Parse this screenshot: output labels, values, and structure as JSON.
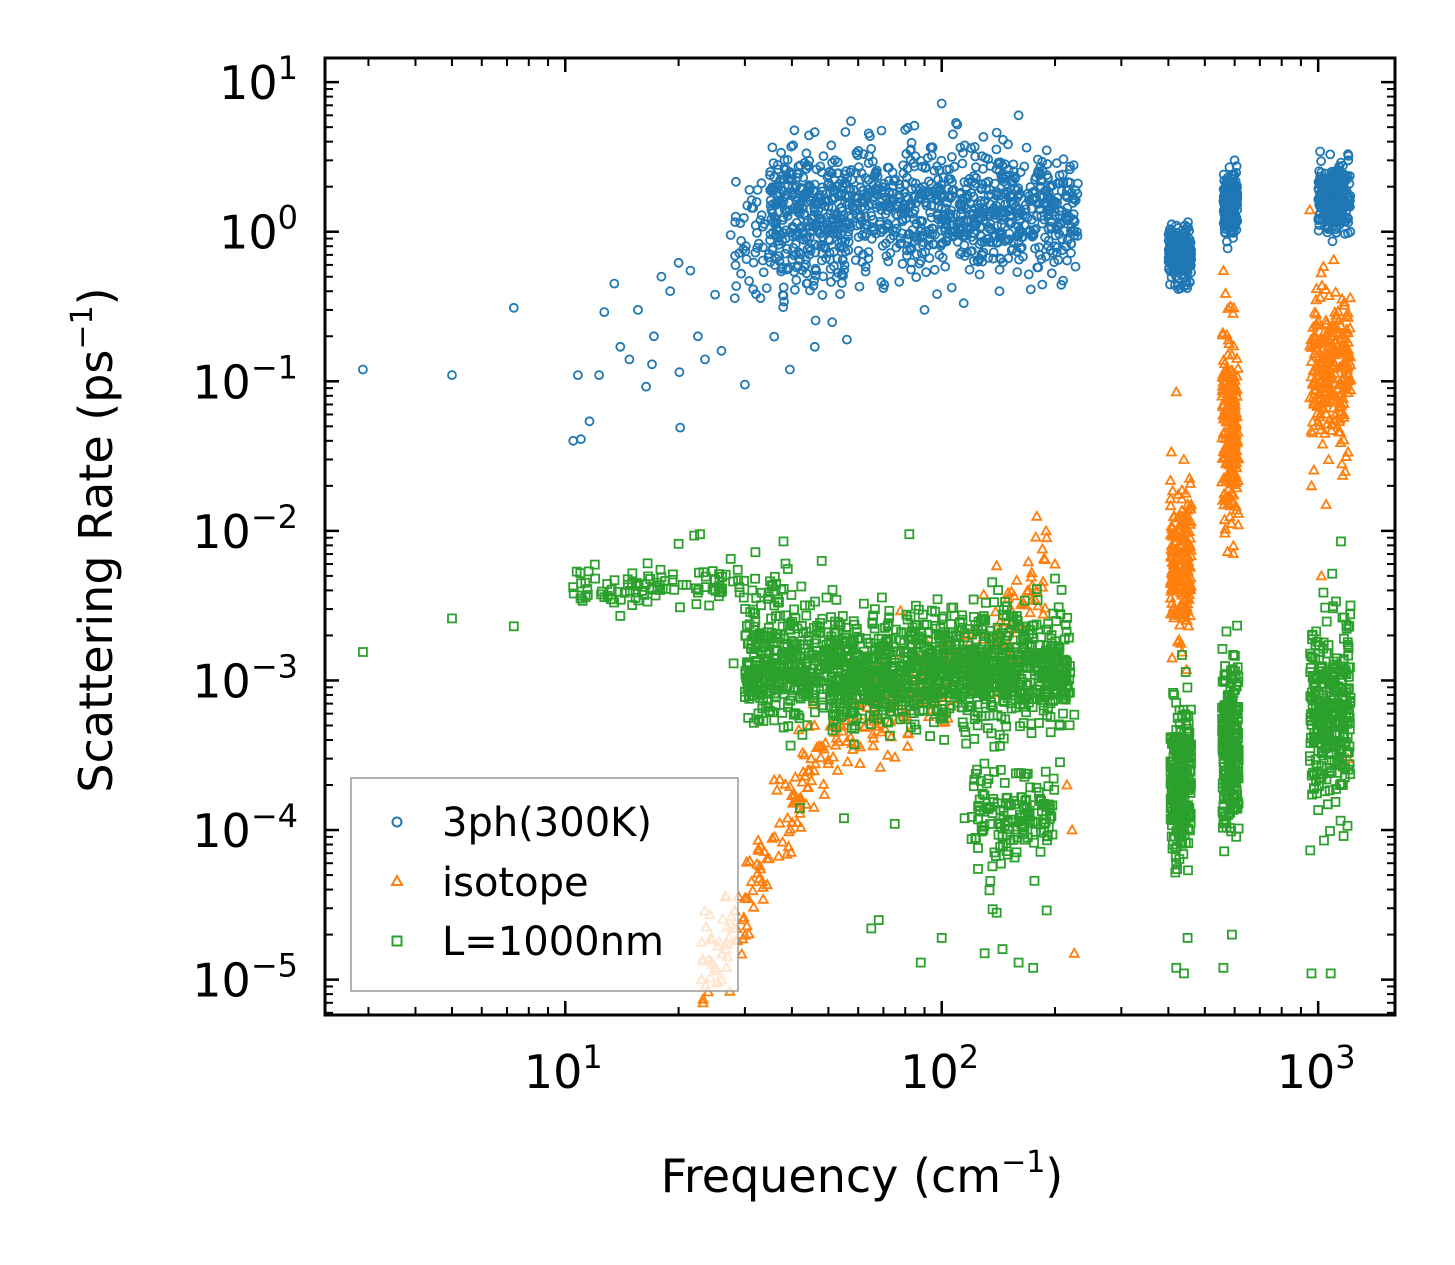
{
  "chart_data": {
    "type": "scatter",
    "xscale": "log",
    "yscale": "log",
    "xlim": [
      2.3,
      1600
    ],
    "ylim": [
      5.8e-06,
      14.5
    ],
    "xlabel": "Frequency (cm",
    "xlabel_sup": "−1",
    "xlabel_end": ")",
    "ylabel": "Scattering Rate (ps",
    "ylabel_sup": "−1",
    "ylabel_end": ")",
    "xticks": [
      {
        "value": 10,
        "base": "10",
        "exp": "1"
      },
      {
        "value": 100,
        "base": "10",
        "exp": "2"
      },
      {
        "value": 1000,
        "base": "10",
        "exp": "3"
      }
    ],
    "yticks": [
      {
        "value": 10,
        "base": "10",
        "exp": "1"
      },
      {
        "value": 1,
        "base": "10",
        "exp": "0"
      },
      {
        "value": 0.1,
        "base": "10",
        "exp": "−1"
      },
      {
        "value": 0.01,
        "base": "10",
        "exp": "−2"
      },
      {
        "value": 0.001,
        "base": "10",
        "exp": "−3"
      },
      {
        "value": 0.0001,
        "base": "10",
        "exp": "−4"
      },
      {
        "value": 1e-05,
        "base": "10",
        "exp": "−5"
      }
    ],
    "legend_position": "lower-left",
    "series": [
      {
        "name": "3ph(300K)",
        "marker": "circle",
        "color": "#1f77b4",
        "points": [
          [
            2.9,
            0.12
          ],
          [
            5,
            0.11
          ],
          [
            7.3,
            0.31
          ],
          [
            10.5,
            0.04
          ],
          [
            11,
            0.041
          ],
          [
            11.6,
            0.054
          ],
          [
            10.8,
            0.11
          ],
          [
            12.3,
            0.11
          ],
          [
            12.7,
            0.29
          ],
          [
            13.5,
            0.45
          ],
          [
            14,
            0.17
          ],
          [
            14.8,
            0.14
          ],
          [
            15.6,
            0.3
          ],
          [
            16.4,
            0.092
          ],
          [
            17,
            0.13
          ],
          [
            17.2,
            0.2
          ],
          [
            18,
            0.5
          ],
          [
            19,
            0.4
          ],
          [
            20,
            0.62
          ],
          [
            20.1,
            0.115
          ],
          [
            20.2,
            0.049
          ],
          [
            21.5,
            0.55
          ],
          [
            22.5,
            0.2
          ],
          [
            23.5,
            0.14
          ],
          [
            25,
            0.38
          ],
          [
            26,
            0.16
          ],
          [
            27.5,
            0.95
          ],
          [
            29,
            0.72
          ],
          [
            30,
            0.095
          ],
          [
            33,
            0.36
          ],
          [
            35,
            1.9
          ],
          [
            36,
            0.6
          ],
          [
            39.5,
            0.12
          ],
          [
            40,
            2.2
          ],
          [
            43,
            1.7
          ],
          [
            46,
            0.17
          ],
          [
            48,
            2.5
          ],
          [
            52,
            3
          ],
          [
            56,
            0.19
          ],
          [
            62,
            3.3
          ],
          [
            70,
            0.42
          ],
          [
            80,
            4.8
          ],
          [
            90,
            0.3
          ],
          [
            100,
            7.2
          ],
          [
            103,
            2.6
          ],
          [
            110,
            5.2
          ],
          [
            125,
            0.63
          ],
          [
            140,
            4.6
          ],
          [
            160,
            6
          ],
          [
            175,
            0.95
          ],
          [
            190,
            3.5
          ],
          [
            200,
            0.8
          ],
          [
            215,
            1.7
          ],
          [
            230,
            2.1
          ],
          [
            420,
            1.1
          ],
          [
            440,
            0.43
          ],
          [
            460,
            0.65
          ],
          [
            560,
            1.6
          ],
          [
            575,
            2.3
          ],
          [
            600,
            3
          ],
          [
            1010,
            1.3
          ],
          [
            1080,
            2
          ],
          [
            1150,
            2.9
          ],
          [
            1200,
            3.3
          ]
        ],
        "clusters": [
          {
            "xmin": 35,
            "xmax": 230,
            "ycenter": 1.4,
            "spread": 0.42,
            "n": 1100
          },
          {
            "xmin": 28,
            "xmax": 55,
            "ycenter": 0.75,
            "spread": 0.45,
            "n": 120
          },
          {
            "xmin": 400,
            "xmax": 460,
            "ycenter": 0.7,
            "spread": 0.18,
            "n": 220
          },
          {
            "xmin": 560,
            "xmax": 610,
            "ycenter": 1.5,
            "spread": 0.2,
            "n": 220
          },
          {
            "xmin": 1000,
            "xmax": 1220,
            "ycenter": 1.7,
            "spread": 0.22,
            "n": 260
          }
        ]
      },
      {
        "name": "isotope",
        "marker": "triangle",
        "color": "#ff7f0e",
        "points": [
          [
            23,
            1e-05
          ],
          [
            25,
            1.2e-05
          ],
          [
            26.5,
            1.7e-05
          ],
          [
            28,
            2.2e-05
          ],
          [
            30,
            3.5e-05
          ],
          [
            33,
            5.5e-05
          ],
          [
            36,
            9e-05
          ],
          [
            40,
            0.00017
          ],
          [
            45,
            0.0003
          ],
          [
            52,
            0.00045
          ],
          [
            60,
            0.00058
          ],
          [
            75,
            0.00075
          ],
          [
            95,
            0.0009
          ],
          [
            120,
            0.0012
          ],
          [
            150,
            0.0022
          ],
          [
            170,
            0.004
          ],
          [
            190,
            0.009
          ],
          [
            200,
            0.006
          ],
          [
            215,
            0.0002
          ],
          [
            222,
            0.0001
          ],
          [
            225,
            1.5e-05
          ],
          [
            420,
            0.085
          ],
          [
            440,
            0.03
          ],
          [
            450,
            0.015
          ],
          [
            560,
            0.55
          ],
          [
            590,
            0.15
          ],
          [
            610,
            0.04
          ],
          [
            950,
            1.4
          ],
          [
            1000,
            0.25
          ],
          [
            1050,
            0.015
          ],
          [
            1100,
            0.65
          ],
          [
            1180,
            0.025
          ],
          [
            1200,
            0.0003
          ],
          [
            960,
            0.02
          ],
          [
            1020,
            0.005
          ]
        ],
        "curve": [
          [
            23,
            1e-05
          ],
          [
            30,
            3e-05
          ],
          [
            40,
            0.00016
          ],
          [
            50,
            0.00038
          ],
          [
            60,
            0.00055
          ],
          [
            80,
            0.0008
          ],
          [
            100,
            0.001
          ],
          [
            130,
            0.0015
          ],
          [
            160,
            0.0028
          ],
          [
            190,
            0.0065
          ]
        ],
        "clusters": [
          {
            "xmin": 23,
            "xmax": 190,
            "ycenter": 0.0004,
            "spread": 0.35,
            "n": 360,
            "follow_curve": true
          },
          {
            "xmin": 405,
            "xmax": 460,
            "ycenter": 0.006,
            "spread": 0.55,
            "n": 200
          },
          {
            "xmin": 555,
            "xmax": 615,
            "ycenter": 0.05,
            "spread": 0.6,
            "n": 220
          },
          {
            "xmin": 950,
            "xmax": 1220,
            "ycenter": 0.12,
            "spread": 0.5,
            "n": 260
          }
        ]
      },
      {
        "name": "L=1000nm",
        "marker": "square",
        "color": "#2ca02c",
        "points": [
          [
            2.9,
            0.00155
          ],
          [
            5,
            0.0026
          ],
          [
            7.3,
            0.0023
          ],
          [
            10.5,
            0.0042
          ],
          [
            11.3,
            0.0045
          ],
          [
            12,
            0.0048
          ],
          [
            12.7,
            0.0036
          ],
          [
            14,
            0.0027
          ],
          [
            15.5,
            0.0043
          ],
          [
            18,
            0.0049
          ],
          [
            20,
            0.0082
          ],
          [
            22,
            0.0093
          ],
          [
            22.8,
            0.0095
          ],
          [
            25,
            0.0047
          ],
          [
            27.5,
            0.0065
          ],
          [
            28,
            0.0013
          ],
          [
            29,
            0.0042
          ],
          [
            32,
            0.0072
          ],
          [
            38,
            0.0085
          ],
          [
            42,
            0.00014
          ],
          [
            48,
            0.0063
          ],
          [
            55,
            0.00012
          ],
          [
            65,
            2.2e-05
          ],
          [
            68,
            2.5e-05
          ],
          [
            75,
            0.00011
          ],
          [
            82,
            0.0095
          ],
          [
            88,
            1.3e-05
          ],
          [
            100,
            1.9e-05
          ],
          [
            115,
            0.00012
          ],
          [
            130,
            1.5e-05
          ],
          [
            140,
            2.8e-05
          ],
          [
            145,
            1.6e-05
          ],
          [
            160,
            1.3e-05
          ],
          [
            175,
            1.2e-05
          ],
          [
            190,
            2.9e-05
          ],
          [
            200,
            0.0048
          ],
          [
            210,
            0.0006
          ],
          [
            225,
            0.00059
          ],
          [
            420,
            1.2e-05
          ],
          [
            440,
            1.1e-05
          ],
          [
            450,
            1.9e-05
          ],
          [
            560,
            1.2e-05
          ],
          [
            590,
            2e-05
          ],
          [
            960,
            1.1e-05
          ],
          [
            1080,
            1.1e-05
          ],
          [
            1150,
            0.0085
          ],
          [
            1180,
            0.00026
          ]
        ],
        "clusters": [
          {
            "xmin": 30,
            "xmax": 220,
            "ycenter": 0.0012,
            "spread": 0.38,
            "n": 1500
          },
          {
            "xmin": 10.5,
            "xmax": 40,
            "ycenter": 0.0042,
            "spread": 0.12,
            "n": 110
          },
          {
            "xmin": 120,
            "xmax": 200,
            "ycenter": 0.00012,
            "spread": 0.35,
            "n": 150
          },
          {
            "xmin": 405,
            "xmax": 460,
            "ycenter": 0.00022,
            "spread": 0.55,
            "n": 260
          },
          {
            "xmin": 555,
            "xmax": 615,
            "ycenter": 0.00035,
            "spread": 0.55,
            "n": 280
          },
          {
            "xmin": 950,
            "xmax": 1220,
            "ycenter": 0.0006,
            "spread": 0.6,
            "n": 320
          }
        ]
      }
    ]
  }
}
